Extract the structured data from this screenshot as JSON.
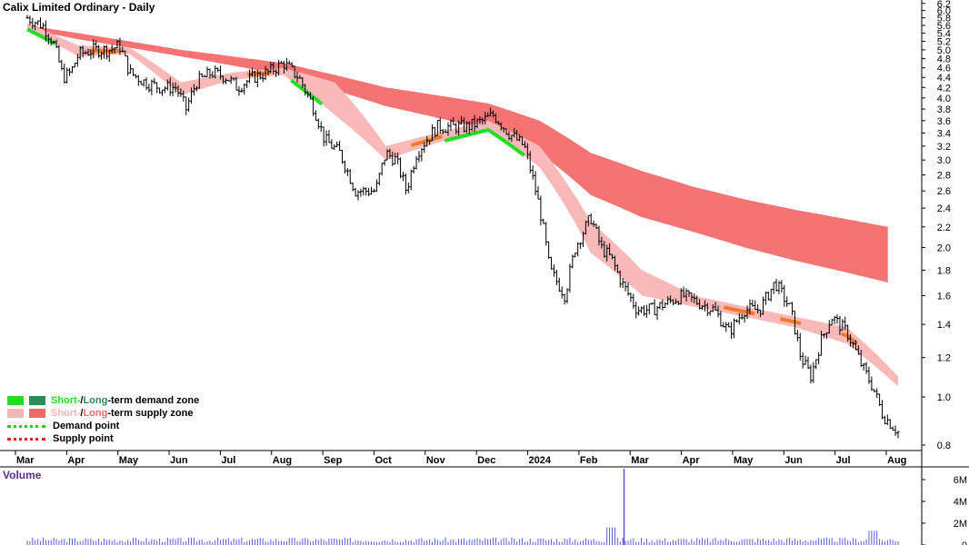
{
  "title": "Calix Limited Ordinary - Daily",
  "volume_title": "Volume",
  "colors": {
    "long_supply_fill": "#f57373",
    "short_supply_fill": "#f9b9b9",
    "short_demand_fill": "#22dd22",
    "long_demand_fill": "#2e8b57",
    "orange_band": "#f07b2a",
    "candle": "#000000",
    "volume_bar": "#5b5bd6"
  },
  "legend": {
    "demand_zone": {
      "short": "Short-",
      "sep": " / ",
      "long": "Long",
      "rest": "-term demand zone"
    },
    "supply_zone": {
      "short": "Short-",
      "sep": " / ",
      "long": "Long",
      "rest": "-term supply zone"
    },
    "demand_point": "Demand point",
    "supply_point": "Supply point"
  },
  "chart_data": {
    "type": "line",
    "title": "Calix Limited Ordinary - Daily",
    "y_scale": "log",
    "ylim": [
      0.78,
      6.3
    ],
    "yticks": [
      0.8,
      1.0,
      1.2,
      1.4,
      1.6,
      1.8,
      2.0,
      2.2,
      2.4,
      2.6,
      2.8,
      3.0,
      3.2,
      3.4,
      3.6,
      3.8,
      4.0,
      4.2,
      4.4,
      4.6,
      4.8,
      5.0,
      5.2,
      5.4,
      5.6,
      5.8,
      6.0,
      6.2
    ],
    "x_labels": [
      "Mar",
      "Apr",
      "May",
      "Jun",
      "Jul",
      "Aug",
      "Sep",
      "Oct",
      "Nov",
      "Dec",
      "2024",
      "Feb",
      "Mar",
      "Apr",
      "May",
      "Jun",
      "Jul",
      "Aug"
    ],
    "x_label_positions": [
      0,
      1,
      2,
      3,
      4,
      5,
      6,
      7,
      8,
      9,
      10,
      11,
      12,
      13,
      14,
      15,
      16,
      17
    ],
    "price": {
      "x": [
        0,
        0.3,
        0.5,
        0.7,
        0.85,
        1.0,
        1.3,
        1.6,
        1.8,
        2.0,
        2.3,
        2.6,
        2.9,
        3.1,
        3.3,
        3.6,
        3.9,
        4.1,
        4.4,
        4.7,
        5.0,
        5.3,
        5.6,
        5.8,
        6.1,
        6.4,
        6.8,
        7.0,
        7.2,
        7.4,
        7.6,
        7.8,
        8.0,
        8.3,
        8.6,
        8.9,
        9.1,
        9.4,
        9.7,
        10.0,
        10.2,
        10.5,
        10.7,
        10.9,
        11.0,
        11.2,
        11.4,
        11.6,
        11.9,
        12.2,
        12.5,
        12.8,
        13.1,
        13.4,
        13.7,
        14.0,
        14.3,
        14.6,
        14.9,
        15.1,
        15.3,
        15.5,
        15.7,
        16.0,
        16.3,
        16.5,
        16.7,
        17.0
      ],
      "close": [
        5.8,
        5.6,
        5.2,
        4.4,
        4.5,
        4.9,
        5.0,
        5.0,
        5.1,
        4.5,
        4.3,
        4.2,
        4.2,
        3.8,
        4.3,
        4.5,
        4.4,
        4.2,
        4.4,
        4.5,
        4.7,
        4.4,
        3.8,
        3.3,
        3.1,
        2.6,
        2.6,
        3.1,
        3.0,
        2.6,
        3.1,
        3.3,
        3.5,
        3.5,
        3.5,
        3.6,
        3.7,
        3.4,
        3.2,
        2.4,
        1.8,
        1.6,
        2.0,
        2.2,
        2.3,
        2.0,
        1.9,
        1.7,
        1.5,
        1.5,
        1.55,
        1.6,
        1.55,
        1.5,
        1.35,
        1.5,
        1.5,
        1.7,
        1.5,
        1.2,
        1.1,
        1.3,
        1.45,
        1.35,
        1.15,
        1.05,
        0.92,
        0.85
      ]
    },
    "short_term_zone": {
      "x": [
        0,
        1,
        2,
        3,
        4,
        5,
        6,
        7,
        8,
        9,
        10,
        11,
        12,
        13,
        14,
        15,
        16,
        17
      ],
      "upper": [
        5.65,
        5.1,
        5.05,
        4.3,
        4.5,
        4.6,
        4.3,
        3.2,
        3.4,
        3.6,
        3.2,
        2.25,
        1.8,
        1.6,
        1.52,
        1.45,
        1.38,
        1.1
      ],
      "lower": [
        5.5,
        4.85,
        4.9,
        4.05,
        4.35,
        4.45,
        3.7,
        3.0,
        3.25,
        3.45,
        2.9,
        1.95,
        1.6,
        1.52,
        1.45,
        1.38,
        1.28,
        1.05
      ]
    },
    "long_term_zone": {
      "x": [
        0,
        1,
        2,
        3,
        4,
        5,
        6,
        7,
        8,
        9,
        10,
        11,
        12,
        13,
        14,
        15,
        16,
        16.8
      ],
      "upper": [
        5.6,
        5.4,
        5.2,
        5.0,
        4.85,
        4.7,
        4.45,
        4.2,
        4.05,
        3.9,
        3.6,
        3.1,
        2.85,
        2.65,
        2.5,
        2.38,
        2.28,
        2.2
      ],
      "lower": [
        5.5,
        5.25,
        5.05,
        4.85,
        4.65,
        4.45,
        4.15,
        3.85,
        3.65,
        3.45,
        3.1,
        2.55,
        2.3,
        2.15,
        2.0,
        1.88,
        1.78,
        1.7
      ]
    },
    "volume": {
      "yticks_labels": [
        "6M",
        "4M",
        "2M",
        "0"
      ],
      "ylim": [
        0,
        7000000
      ],
      "spike": {
        "x": 11.65,
        "value": 7000000
      }
    }
  }
}
